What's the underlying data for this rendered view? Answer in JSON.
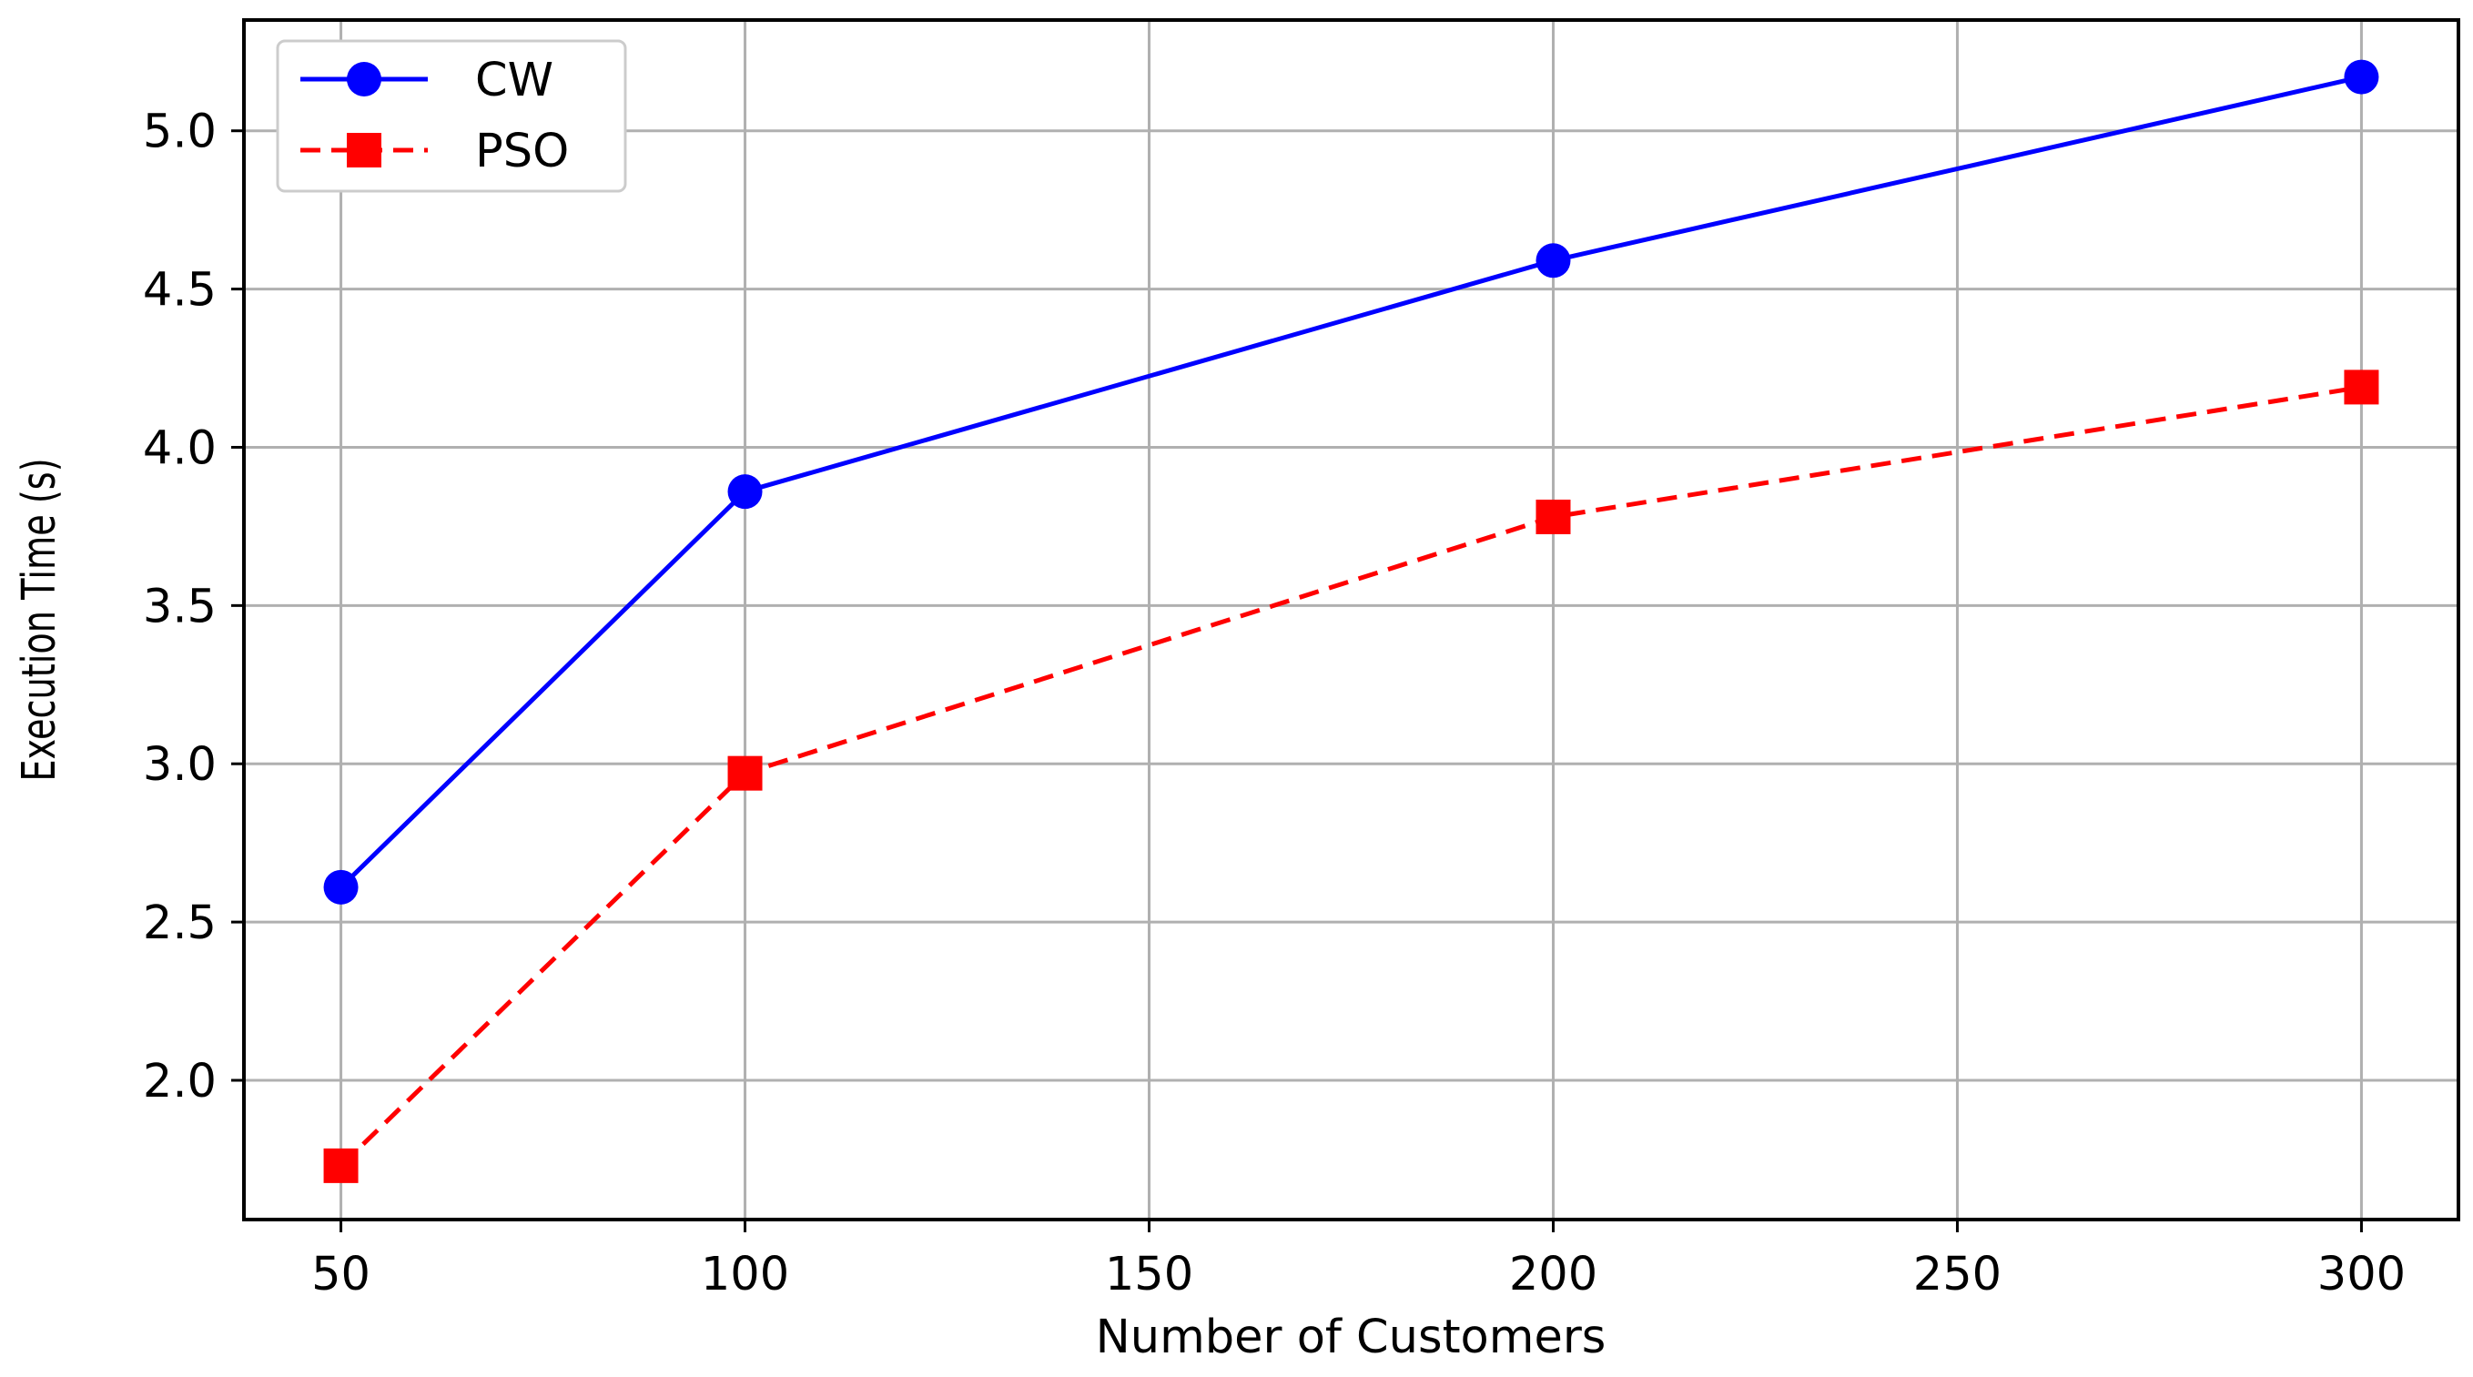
{
  "chart_data": {
    "type": "line",
    "title": "",
    "xlabel": "Number of Customers",
    "ylabel": "Execution Time (s)",
    "x": [
      50,
      100,
      200,
      300
    ],
    "xlim": [
      38,
      312
    ],
    "ylim": [
      1.56,
      5.35
    ],
    "xticks": [
      50,
      100,
      150,
      200,
      250,
      300
    ],
    "yticks": [
      2.0,
      2.5,
      3.0,
      3.5,
      4.0,
      4.5,
      5.0
    ],
    "xtick_labels": [
      "50",
      "100",
      "150",
      "200",
      "250",
      "300"
    ],
    "ytick_labels": [
      "2.0",
      "2.5",
      "3.0",
      "3.5",
      "4.0",
      "4.5",
      "5.0"
    ],
    "grid": true,
    "legend_position": "top-left",
    "series": [
      {
        "name": "CW",
        "values": [
          2.61,
          3.86,
          4.59,
          5.17
        ],
        "color": "#0000ff",
        "line_style": "solid",
        "marker": "circle"
      },
      {
        "name": "PSO",
        "values": [
          1.73,
          2.97,
          3.78,
          4.19
        ],
        "color": "#ff0000",
        "line_style": "dashed",
        "marker": "square"
      }
    ]
  }
}
